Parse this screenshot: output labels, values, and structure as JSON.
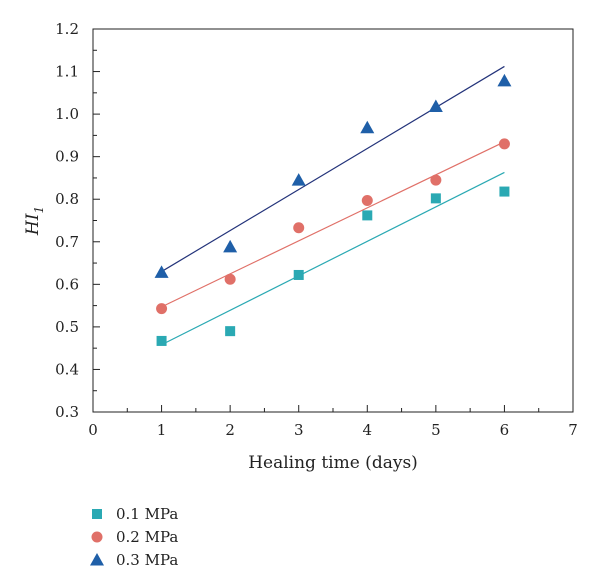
{
  "chart_data": {
    "type": "scatter",
    "title": "",
    "xlabel": "Healing time (days)",
    "ylabel": {
      "main": "HI",
      "sub": "1"
    },
    "xlim": [
      0,
      7
    ],
    "ylim": [
      0.3,
      1.2
    ],
    "xticks": [
      "0",
      "1",
      "2",
      "3",
      "4",
      "5",
      "6",
      "7"
    ],
    "yticks": [
      "0.3",
      "0.4",
      "0.5",
      "0.6",
      "0.7",
      "0.8",
      "0.9",
      "1.0",
      "1.1",
      "1.2"
    ],
    "grid": false,
    "legend_position": "bottom-left",
    "x": [
      1,
      2,
      3,
      4,
      5,
      6
    ],
    "series": [
      {
        "name": "0.1 MPa",
        "marker": "square",
        "color": "#2aa9b3",
        "values": [
          0.467,
          0.49,
          0.622,
          0.762,
          0.802,
          0.818
        ],
        "fit_line": [
          0.458,
          0.863
        ]
      },
      {
        "name": "0.2 MPa",
        "marker": "circle",
        "color": "#e07068",
        "values": [
          0.543,
          0.612,
          0.733,
          0.797,
          0.845,
          0.93
        ],
        "fit_line": [
          0.547,
          0.935
        ]
      },
      {
        "name": "0.3 MPa",
        "marker": "triangle",
        "color": "#1f5fa8",
        "line_color": "#23337a",
        "values": [
          0.628,
          0.688,
          0.845,
          0.968,
          1.018,
          1.078
        ],
        "fit_line": [
          0.63,
          1.112
        ]
      }
    ]
  }
}
